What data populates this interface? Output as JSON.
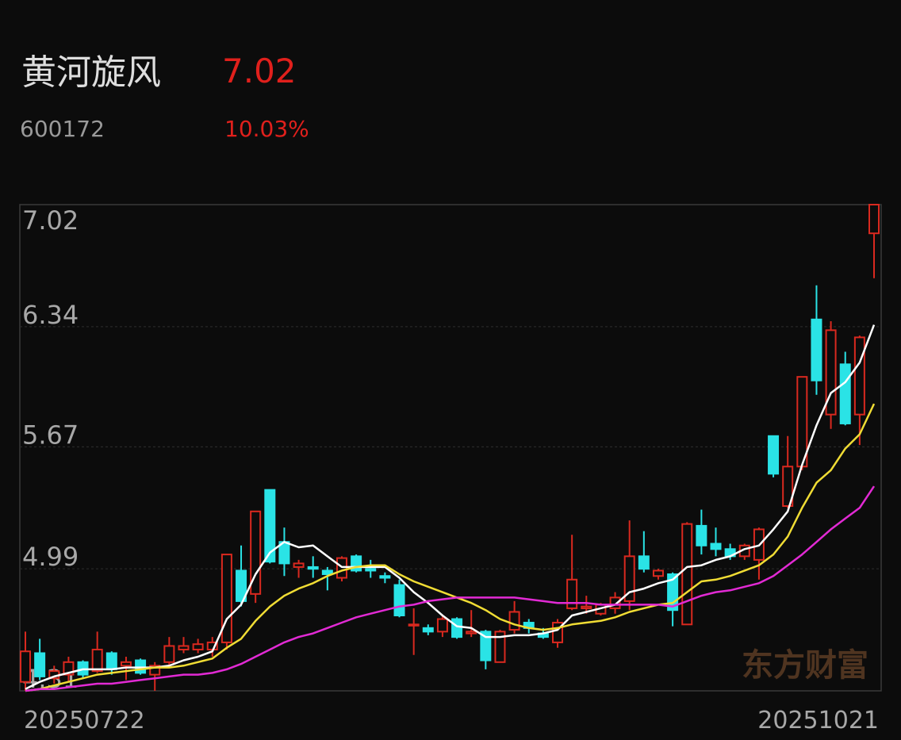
{
  "header": {
    "name": "黄河旋风",
    "price": "7.02",
    "code": "600172",
    "change": "10.03%"
  },
  "watermark": "东方财富",
  "chart_data": {
    "type": "candlestick",
    "categories": [
      "20250722",
      null,
      null,
      null,
      null,
      null,
      null,
      null,
      null,
      null,
      null,
      null,
      null,
      null,
      null,
      null,
      null,
      null,
      null,
      null,
      null,
      null,
      null,
      null,
      null,
      null,
      null,
      null,
      null,
      null,
      null,
      null,
      null,
      null,
      null,
      null,
      null,
      null,
      null,
      null,
      null,
      null,
      null,
      null,
      null,
      null,
      null,
      null,
      null,
      null,
      null,
      null,
      null,
      null,
      null,
      null,
      null,
      null,
      null,
      "20251021"
    ],
    "open": [
      4.36,
      4.52,
      4.38,
      4.4,
      4.47,
      4.42,
      4.52,
      4.45,
      4.48,
      4.4,
      4.47,
      4.54,
      4.54,
      4.54,
      4.58,
      4.98,
      4.85,
      5.43,
      5.14,
      5.0,
      5.0,
      4.98,
      4.94,
      5.06,
      4.99,
      4.95,
      4.9,
      4.68,
      4.66,
      4.64,
      4.71,
      4.63,
      4.64,
      4.47,
      4.65,
      4.69,
      4.63,
      4.58,
      4.77,
      4.77,
      4.74,
      4.77,
      4.81,
      5.06,
      4.95,
      4.96,
      4.68,
      5.23,
      5.13,
      5.1,
      5.06,
      5.04,
      5.73,
      5.34,
      5.56,
      6.38,
      5.85,
      6.13,
      5.85,
      6.86
    ],
    "high": [
      4.64,
      4.6,
      4.45,
      4.5,
      4.48,
      4.64,
      4.53,
      4.5,
      4.49,
      4.47,
      4.61,
      4.61,
      4.6,
      4.61,
      5.07,
      5.12,
      5.31,
      5.43,
      5.22,
      5.04,
      5.06,
      5.0,
      5.06,
      5.07,
      5.04,
      4.97,
      4.93,
      4.77,
      4.68,
      4.73,
      4.72,
      4.76,
      4.65,
      4.65,
      4.81,
      4.71,
      4.66,
      4.71,
      5.18,
      4.84,
      4.8,
      4.86,
      5.26,
      5.2,
      4.99,
      4.97,
      5.25,
      5.32,
      5.22,
      5.13,
      5.13,
      5.22,
      5.73,
      5.73,
      6.06,
      6.57,
      6.37,
      6.2,
      6.29,
      7.02
    ],
    "low": [
      4.31,
      4.37,
      4.35,
      4.36,
      4.38,
      4.41,
      4.4,
      4.37,
      4.4,
      4.31,
      4.45,
      4.52,
      4.52,
      4.5,
      4.54,
      4.78,
      4.8,
      5.02,
      4.95,
      4.94,
      4.94,
      4.87,
      4.92,
      4.97,
      4.94,
      4.91,
      4.72,
      4.51,
      4.62,
      4.61,
      4.6,
      4.61,
      4.43,
      4.47,
      4.63,
      4.63,
      4.6,
      4.55,
      4.76,
      4.74,
      4.73,
      4.74,
      4.76,
      4.97,
      4.93,
      4.67,
      4.68,
      5.07,
      5.06,
      5.04,
      5.04,
      4.93,
      5.5,
      5.33,
      5.54,
      5.96,
      5.77,
      5.79,
      5.68,
      6.61
    ],
    "close": [
      4.53,
      4.39,
      4.42,
      4.47,
      4.4,
      4.54,
      4.43,
      4.47,
      4.41,
      4.45,
      4.56,
      4.56,
      4.57,
      4.58,
      5.07,
      4.81,
      5.31,
      5.03,
      5.02,
      5.02,
      4.99,
      4.96,
      5.05,
      4.98,
      4.98,
      4.94,
      4.73,
      4.68,
      4.64,
      4.71,
      4.61,
      4.64,
      4.48,
      4.64,
      4.75,
      4.66,
      4.61,
      4.69,
      4.93,
      4.78,
      4.79,
      4.83,
      5.06,
      4.99,
      4.98,
      4.76,
      5.24,
      5.12,
      5.1,
      5.06,
      5.12,
      5.21,
      5.52,
      5.56,
      6.06,
      6.04,
      6.32,
      5.8,
      6.28,
      7.02
    ],
    "up_color": "#d9291f",
    "down_color": "#2ae3e6",
    "series": [
      {
        "color": "#ffffff",
        "values": [
          4.32,
          4.36,
          4.39,
          4.41,
          4.43,
          4.43,
          4.43,
          4.44,
          4.44,
          4.44,
          4.45,
          4.48,
          4.5,
          4.53,
          4.71,
          4.79,
          4.96,
          5.08,
          5.14,
          5.11,
          5.12,
          5.06,
          5.0,
          5.0,
          5.0,
          5.0,
          4.94,
          4.86,
          4.8,
          4.73,
          4.67,
          4.66,
          4.61,
          4.61,
          4.62,
          4.62,
          4.63,
          4.65,
          4.73,
          4.75,
          4.77,
          4.79,
          4.86,
          4.88,
          4.91,
          4.93,
          5.0,
          5.01,
          5.04,
          5.06,
          5.1,
          5.12,
          5.21,
          5.31,
          5.57,
          5.79,
          5.97,
          6.03,
          6.14,
          6.35
        ]
      },
      {
        "color": "#f0dc34",
        "values": [
          4.31,
          4.32,
          4.34,
          4.36,
          4.38,
          4.4,
          4.41,
          4.42,
          4.43,
          4.44,
          4.44,
          4.45,
          4.47,
          4.49,
          4.55,
          4.6,
          4.7,
          4.78,
          4.84,
          4.88,
          4.91,
          4.95,
          4.98,
          5.0,
          5.01,
          5.01,
          4.96,
          4.92,
          4.89,
          4.86,
          4.83,
          4.8,
          4.76,
          4.71,
          4.68,
          4.66,
          4.65,
          4.66,
          4.68,
          4.69,
          4.7,
          4.72,
          4.75,
          4.77,
          4.79,
          4.8,
          4.86,
          4.92,
          4.93,
          4.95,
          4.98,
          5.01,
          5.07,
          5.17,
          5.33,
          5.47,
          5.54,
          5.66,
          5.74,
          5.91
        ]
      },
      {
        "color": "#e22ad4",
        "values": [
          4.31,
          4.32,
          4.32,
          4.33,
          4.34,
          4.35,
          4.35,
          4.36,
          4.37,
          4.38,
          4.39,
          4.4,
          4.4,
          4.41,
          4.43,
          4.46,
          4.5,
          4.54,
          4.58,
          4.61,
          4.63,
          4.66,
          4.69,
          4.72,
          4.74,
          4.76,
          4.78,
          4.79,
          4.81,
          4.82,
          4.83,
          4.83,
          4.83,
          4.83,
          4.83,
          4.82,
          4.81,
          4.8,
          4.8,
          4.8,
          4.79,
          4.79,
          4.79,
          4.79,
          4.79,
          4.78,
          4.81,
          4.84,
          4.86,
          4.87,
          4.89,
          4.91,
          4.95,
          5.01,
          5.07,
          5.14,
          5.21,
          5.27,
          5.33,
          5.45
        ]
      }
    ],
    "ylim": [
      4.31,
      7.02
    ],
    "yticks": [
      4.31,
      4.99,
      5.67,
      6.34,
      7.02
    ],
    "grid": true
  }
}
